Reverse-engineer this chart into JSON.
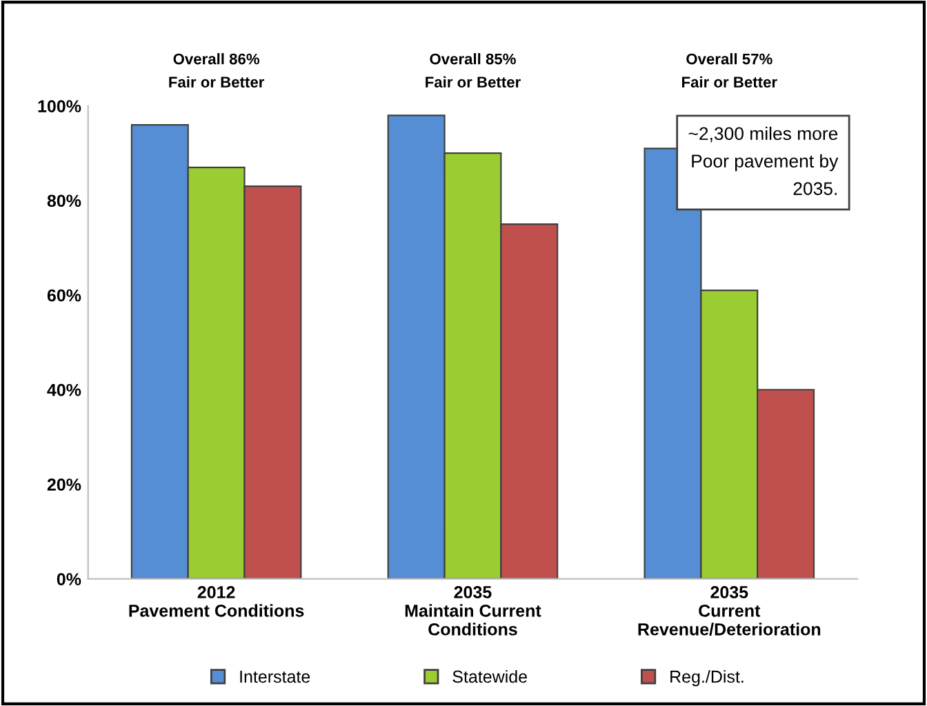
{
  "chart_data": {
    "type": "bar",
    "categories": [
      "2012\nPavement Conditions",
      "2035\nMaintain Current\nConditions",
      "2035\nCurrent\nRevenue/Deterioration"
    ],
    "series": [
      {
        "name": "Interstate",
        "color": "#558ed5",
        "values": [
          96,
          98,
          91
        ]
      },
      {
        "name": "Statewide",
        "color": "#9acd32",
        "values": [
          87,
          90,
          61
        ]
      },
      {
        "name": "Reg./Dist.",
        "color": "#c0504d",
        "values": [
          83,
          75,
          40
        ]
      }
    ],
    "ylim": [
      0,
      100
    ],
    "yticks": [
      {
        "value": 0,
        "label": "0%"
      },
      {
        "value": 20,
        "label": "20%"
      },
      {
        "value": 40,
        "label": "40%"
      },
      {
        "value": 60,
        "label": "60%"
      },
      {
        "value": 80,
        "label": "80%"
      },
      {
        "value": 100,
        "label": "100%"
      }
    ],
    "annotations": [
      "Overall 86%\nFair or Better",
      "Overall 85%\nFair or Better",
      "Overall 57%\nFair or Better",
      "~2,300 miles more\nPoor pavement by\n2035."
    ],
    "grid": false,
    "legend": "bottom"
  }
}
